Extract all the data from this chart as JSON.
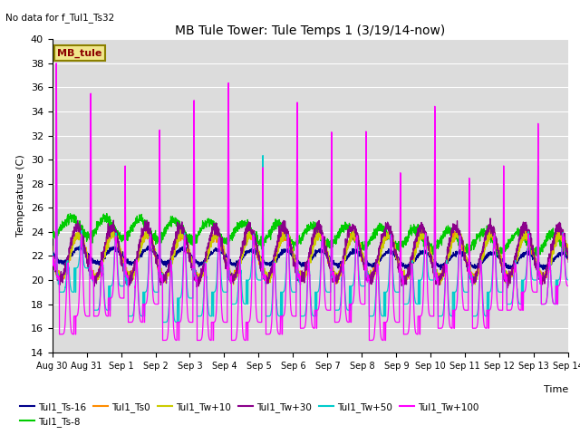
{
  "title": "MB Tule Tower: Tule Temps 1 (3/19/14-now)",
  "no_data_text": "No data for f_Tul1_Ts32",
  "ylabel": "Temperature (C)",
  "xlabel": "Time",
  "ylim": [
    14,
    40
  ],
  "yticks": [
    14,
    16,
    18,
    20,
    22,
    24,
    26,
    28,
    30,
    32,
    34,
    36,
    38,
    40
  ],
  "bg_color": "#dcdcdc",
  "legend_box_color": "#f0e68c",
  "legend_box_edge": "#8b8000",
  "legend_box_text": "MB_tule",
  "series_colors": {
    "Tul1_Ts-16": "#00008b",
    "Tul1_Ts-8": "#00cc00",
    "Tul1_Ts0": "#ff8c00",
    "Tul1_Tw+10": "#cccc00",
    "Tul1_Tw+30": "#8b008b",
    "Tul1_Tw+50": "#00cccc",
    "Tul1_Tw+100": "#ff00ff"
  },
  "xtick_labels": [
    "Aug 30",
    "Aug 31",
    "Sep 1",
    "Sep 2",
    "Sep 3",
    "Sep 4",
    "Sep 5",
    "Sep 6",
    "Sep 7",
    "Sep 8",
    "Sep 9",
    "Sep 10",
    "Sep 11",
    "Sep 12",
    "Sep 13",
    "Sep 14"
  ],
  "xtick_positions": [
    0,
    1,
    2,
    3,
    4,
    5,
    6,
    7,
    8,
    9,
    10,
    11,
    12,
    13,
    14,
    15
  ]
}
